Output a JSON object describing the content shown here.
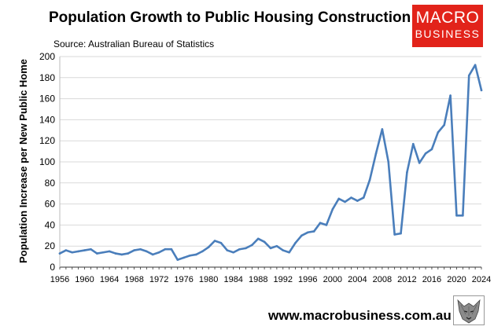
{
  "header": {
    "title": "Population Growth to Public Housing Construction",
    "source": "Source: Australian Bureau of Statistics"
  },
  "logo": {
    "line1": "MACRO",
    "line2": "BUSINESS"
  },
  "footer": {
    "url": "www.macrobusiness.com.au"
  },
  "colors": {
    "line": "#4a7ebb",
    "grid": "#d9d9d9",
    "logo_bg": "#e2231a"
  },
  "chart_data": {
    "type": "line",
    "title": "Population Growth to Public Housing Construction",
    "xlabel": "",
    "ylabel": "Population Increase per New Public Home",
    "xlim": [
      1956,
      2024
    ],
    "ylim": [
      0,
      200
    ],
    "x_ticks": [
      1956,
      1960,
      1964,
      1968,
      1972,
      1976,
      1980,
      1984,
      1988,
      1992,
      1996,
      2000,
      2004,
      2008,
      2012,
      2016,
      2020,
      2024
    ],
    "y_ticks": [
      0,
      20,
      40,
      60,
      80,
      100,
      120,
      140,
      160,
      180,
      200
    ],
    "grid": "horizontal",
    "series": [
      {
        "name": "Population Increase per New Public Home",
        "x": [
          1956,
          1957,
          1958,
          1959,
          1960,
          1961,
          1962,
          1963,
          1964,
          1965,
          1966,
          1967,
          1968,
          1969,
          1970,
          1971,
          1972,
          1973,
          1974,
          1975,
          1976,
          1977,
          1978,
          1979,
          1980,
          1981,
          1982,
          1983,
          1984,
          1985,
          1986,
          1987,
          1988,
          1989,
          1990,
          1991,
          1992,
          1993,
          1994,
          1995,
          1996,
          1997,
          1998,
          1999,
          2000,
          2001,
          2002,
          2003,
          2004,
          2005,
          2006,
          2007,
          2008,
          2009,
          2010,
          2011,
          2012,
          2013,
          2014,
          2015,
          2016,
          2017,
          2018,
          2019,
          2020,
          2021,
          2022,
          2023,
          2024
        ],
        "values": [
          13,
          16,
          14,
          15,
          16,
          17,
          13,
          14,
          15,
          13,
          12,
          13,
          16,
          17,
          15,
          12,
          14,
          17,
          17,
          7,
          9,
          11,
          12,
          15,
          19,
          25,
          23,
          16,
          14,
          17,
          18,
          21,
          27,
          24,
          18,
          20,
          16,
          14,
          23,
          30,
          33,
          34,
          42,
          40,
          55,
          65,
          62,
          66,
          63,
          66,
          83,
          108,
          131,
          100,
          31,
          32,
          90,
          117,
          99,
          108,
          112,
          128,
          135,
          163,
          49,
          49,
          182,
          192,
          168
        ]
      }
    ]
  }
}
